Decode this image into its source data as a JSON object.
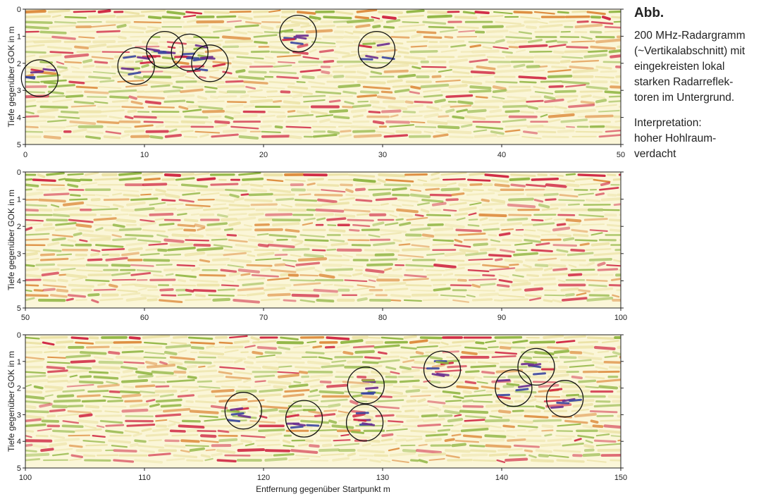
{
  "caption": {
    "title": "Abb.",
    "lines": [
      "200 MHz-Radargramm",
      "(~Vertikalabschnitt) mit",
      "eingekreisten lokal",
      "starken Radarreflek-",
      "toren im Untergrund."
    ],
    "interp_lines": [
      "Interpretation:",
      "hoher Hohlraum-",
      "verdacht"
    ]
  },
  "chart_data": [
    {
      "type": "heatmap",
      "title": "",
      "xlabel": "",
      "ylabel": "Tiefe gegenüber GOK in m",
      "xlim": [
        0,
        50
      ],
      "ylim": [
        0,
        5
      ],
      "xticks": [
        0,
        10,
        20,
        30,
        40,
        50
      ],
      "yticks": [
        0,
        1,
        2,
        3,
        4,
        5
      ],
      "circles": [
        {
          "x": 1.2,
          "y": 2.55
        },
        {
          "x": 9.3,
          "y": 2.1
        },
        {
          "x": 11.7,
          "y": 1.5
        },
        {
          "x": 13.8,
          "y": 1.6
        },
        {
          "x": 15.5,
          "y": 2.0
        },
        {
          "x": 22.9,
          "y": 0.9
        },
        {
          "x": 29.5,
          "y": 1.5
        }
      ]
    },
    {
      "type": "heatmap",
      "title": "",
      "xlabel": "",
      "ylabel": "Tiefe gegenüber GOK in m",
      "xlim": [
        50,
        100
      ],
      "ylim": [
        0,
        5
      ],
      "xticks": [
        50,
        60,
        70,
        80,
        90,
        100
      ],
      "yticks": [
        0,
        1,
        2,
        3,
        4,
        5
      ],
      "circles": []
    },
    {
      "type": "heatmap",
      "title": "",
      "xlabel": "Entfernung gegenüber Startpunkt m",
      "ylabel": "Tiefe gegenüber GOK in m",
      "xlim": [
        100,
        150
      ],
      "ylim": [
        0,
        5
      ],
      "xticks": [
        100,
        110,
        120,
        130,
        140,
        150
      ],
      "yticks": [
        0,
        1,
        2,
        3,
        4,
        5
      ],
      "circles": [
        {
          "x": 118.3,
          "y": 2.85
        },
        {
          "x": 123.4,
          "y": 3.15
        },
        {
          "x": 128.6,
          "y": 1.9
        },
        {
          "x": 128.5,
          "y": 3.3
        },
        {
          "x": 135.0,
          "y": 1.3
        },
        {
          "x": 141.0,
          "y": 2.0
        },
        {
          "x": 142.9,
          "y": 1.2
        },
        {
          "x": 145.3,
          "y": 2.4
        }
      ]
    }
  ],
  "colors": {
    "background": "#fbf6d8",
    "light_band": "#ece3a6",
    "green": "#8fb541",
    "orange": "#dd8a3a",
    "red": "#cf2340",
    "blue": "#3a45a0",
    "purple": "#6b2d8f",
    "circle": "#111111",
    "axis": "#222222"
  }
}
